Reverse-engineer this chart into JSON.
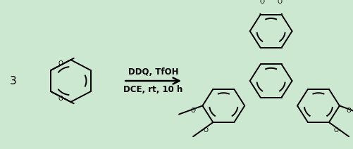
{
  "bg_color": "#cde8d0",
  "fig_width": 5.02,
  "fig_height": 2.12,
  "dpi": 100,
  "line_color": "#000000",
  "text_color": "#000000",
  "line_width": 1.4,
  "reagent_line1": "DDQ, TfOH",
  "reagent_line2": "DCE, rt, 10 h",
  "coefficient": "3"
}
